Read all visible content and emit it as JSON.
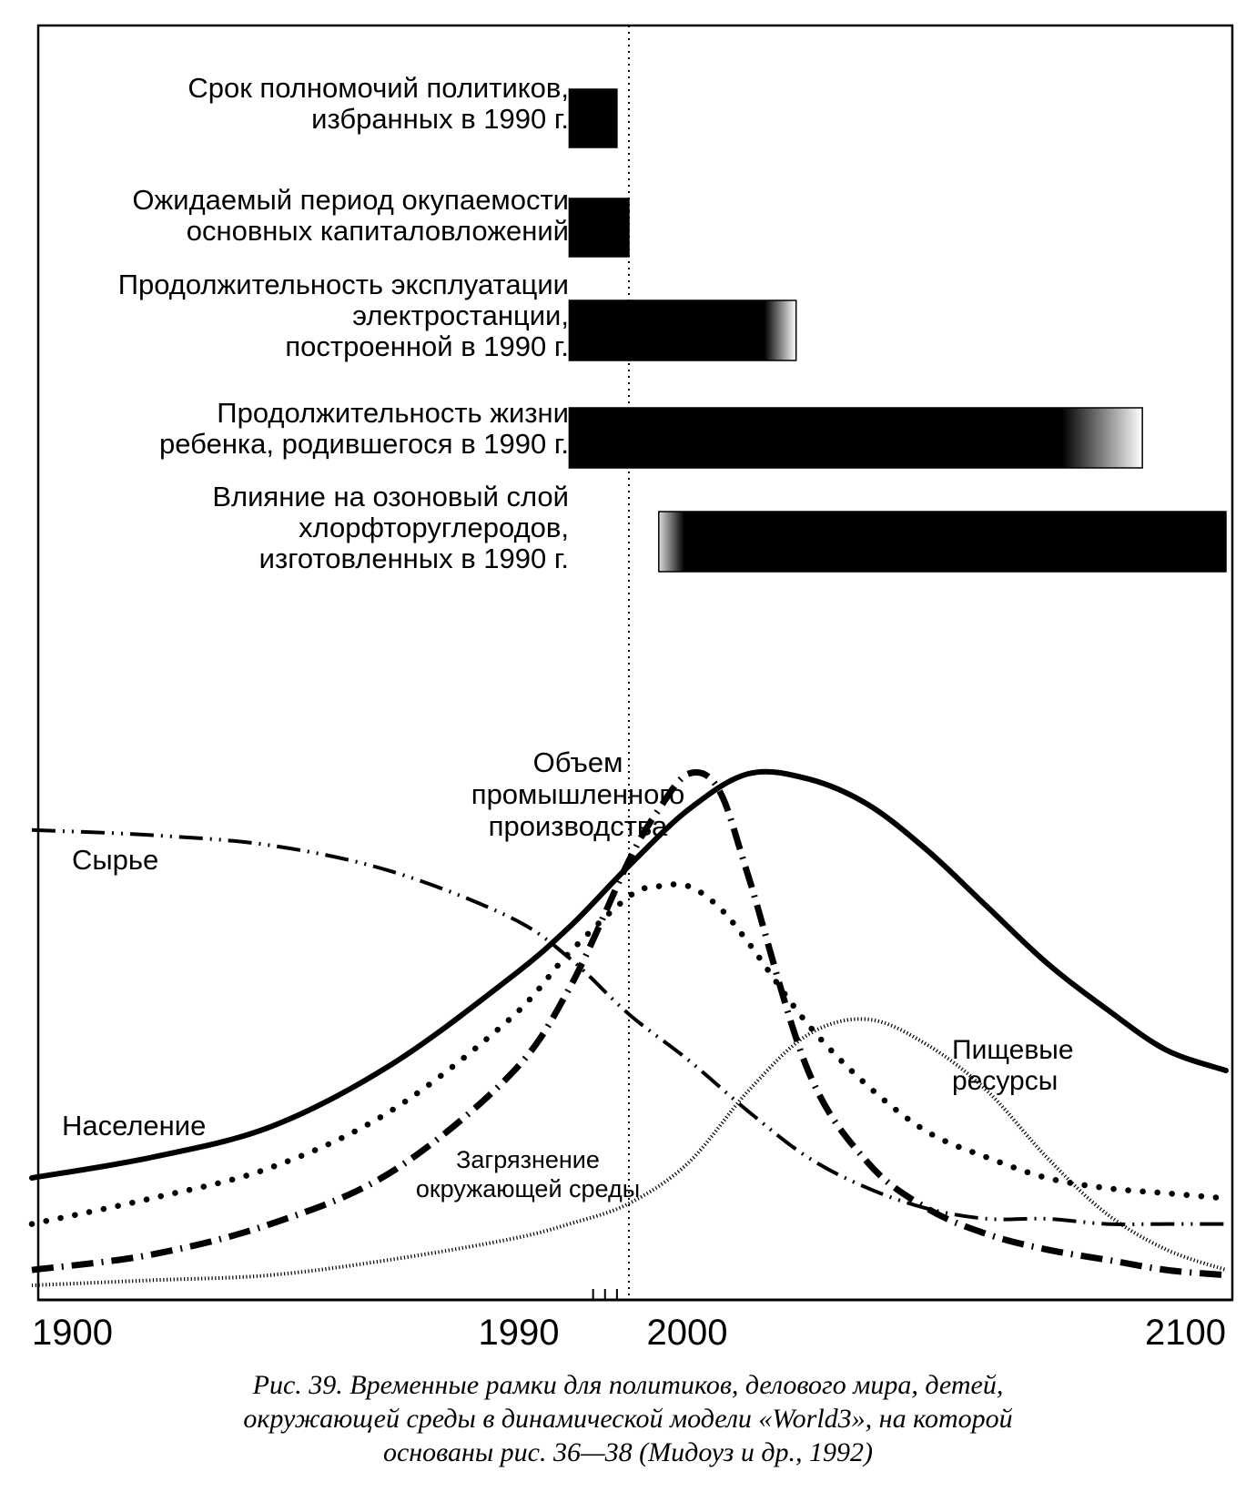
{
  "chart_data": {
    "type": "line",
    "x_axis": {
      "range": [
        1900,
        2100
      ],
      "tick_labels": [
        "1900",
        "1990",
        "2000",
        "2100"
      ],
      "minor_ticks": [
        1994,
        1996,
        1998
      ],
      "reference_year": 2000
    },
    "bars": [
      {
        "label_lines": [
          "Срок полномочий политиков,",
          "избранных в 1990 г."
        ],
        "start": 1990,
        "end": 1998,
        "fade": "none"
      },
      {
        "label_lines": [
          "Ожидаемый период окупаемости",
          "основных капиталовложений"
        ],
        "start": 1990,
        "end": 2000,
        "fade": "none"
      },
      {
        "label_lines": [
          "Продолжительность эксплуатации",
          "электростанции,",
          "построенной в 1990 г."
        ],
        "start": 1990,
        "end": 2028,
        "fade": "end"
      },
      {
        "label_lines": [
          "Продолжительность жизни",
          "ребенка, родившегося в 1990 г."
        ],
        "start": 1990,
        "end": 2086,
        "fade": "end"
      },
      {
        "label_lines": [
          "Влияние на озоновый слой",
          "хлорфторуглеродов,",
          "изготовленных в 1990 г."
        ],
        "start": 2005,
        "end": 2100,
        "fade": "start"
      }
    ],
    "series": [
      {
        "name": "Население",
        "label_lines": [
          "Население"
        ],
        "style": "solid",
        "x": [
          1900,
          1920,
          1940,
          1960,
          1980,
          1990,
          2000,
          2010,
          2020,
          2030,
          2040,
          2050,
          2060,
          2070,
          2080,
          2090,
          2100
        ],
        "y": [
          0.21,
          0.25,
          0.31,
          0.43,
          0.6,
          0.7,
          0.82,
          0.93,
          1.0,
          0.99,
          0.94,
          0.85,
          0.74,
          0.63,
          0.54,
          0.46,
          0.42
        ]
      },
      {
        "name": "Пищевые ресурсы",
        "label_lines": [
          "Пищевые",
          "ресурсы"
        ],
        "style": "dotted",
        "x": [
          1900,
          1920,
          1940,
          1960,
          1980,
          1990,
          2000,
          2005,
          2010,
          2015,
          2020,
          2030,
          2040,
          2050,
          2060,
          2070,
          2080,
          2090,
          2100
        ],
        "y": [
          0.12,
          0.17,
          0.23,
          0.34,
          0.52,
          0.65,
          0.76,
          0.78,
          0.78,
          0.74,
          0.67,
          0.51,
          0.39,
          0.3,
          0.25,
          0.21,
          0.19,
          0.18,
          0.17
        ]
      },
      {
        "name": "Объем промышленного производства",
        "label_lines": [
          "Объем",
          "промышленного",
          "производства"
        ],
        "style": "dash-dot",
        "x": [
          1900,
          1920,
          1940,
          1960,
          1980,
          1990,
          2000,
          2005,
          2010,
          2015,
          2020,
          2030,
          2040,
          2050,
          2060,
          2070,
          2080,
          2090,
          2100
        ],
        "y": [
          0.03,
          0.06,
          0.12,
          0.22,
          0.41,
          0.58,
          0.83,
          0.93,
          1.0,
          0.97,
          0.8,
          0.42,
          0.24,
          0.15,
          0.1,
          0.07,
          0.05,
          0.03,
          0.02
        ]
      },
      {
        "name": "Сырье",
        "label_lines": [
          "Сырье"
        ],
        "style": "dash-dot-dot",
        "x": [
          1900,
          1920,
          1940,
          1960,
          1980,
          1990,
          2000,
          2010,
          2020,
          2030,
          2040,
          2050,
          2060,
          2070,
          2080,
          2090,
          2100
        ],
        "y": [
          0.89,
          0.88,
          0.86,
          0.81,
          0.72,
          0.64,
          0.53,
          0.44,
          0.34,
          0.25,
          0.19,
          0.15,
          0.13,
          0.13,
          0.12,
          0.12,
          0.12
        ]
      },
      {
        "name": "Загрязнение окружающей среды",
        "label_lines": [
          "Загрязнение",
          "окружающей среды"
        ],
        "style": "fine-dotted",
        "x": [
          1900,
          1920,
          1940,
          1960,
          1980,
          1990,
          2000,
          2010,
          2020,
          2030,
          2040,
          2050,
          2060,
          2070,
          2080,
          2090,
          2100
        ],
        "y": [
          0.0,
          0.01,
          0.02,
          0.05,
          0.09,
          0.12,
          0.16,
          0.24,
          0.38,
          0.49,
          0.52,
          0.47,
          0.38,
          0.25,
          0.14,
          0.07,
          0.03
        ]
      }
    ]
  },
  "caption": {
    "lines": [
      "Рис. 39. Временные рамки для политиков,  делового мира, детей,",
      "окружающей среды в динамической  модели «World3», на которой",
      "основаны рис. 36—38   (Мидоуз и др., 1992)"
    ]
  }
}
